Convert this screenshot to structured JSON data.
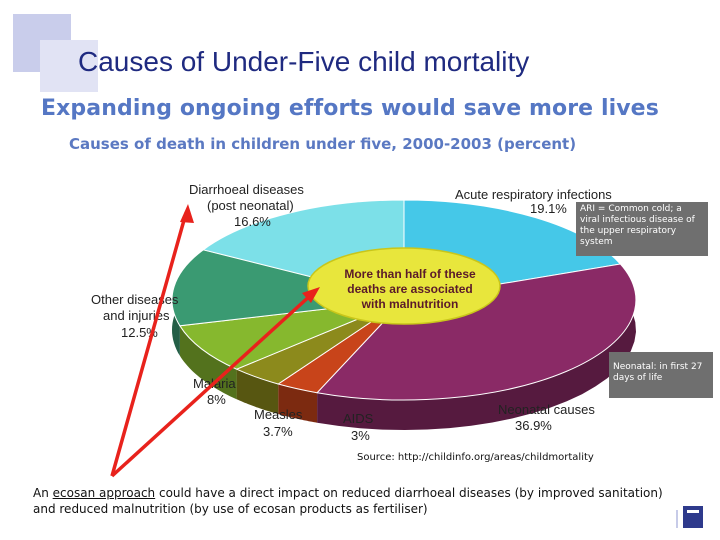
{
  "slide_title": "Causes of Under-Five child mortality",
  "headline": "Expanding ongoing efforts would save more lives",
  "chart_data": {
    "type": "pie",
    "title": "Causes of death in children under five, 2000-2003 (percent)",
    "slices": [
      {
        "label": "Acute respiratory infections",
        "value": 19.1,
        "value_label": "19.1%",
        "color": "#45c8e8"
      },
      {
        "label": "Neonatal causes",
        "value": 36.9,
        "value_label": "36.9%",
        "color": "#8a2a66"
      },
      {
        "label": "AIDS",
        "value": 3,
        "value_label": "3%",
        "color": "#c8441a"
      },
      {
        "label": "Measles",
        "value": 3.7,
        "value_label": "3.7%",
        "color": "#8c8a1c"
      },
      {
        "label": "Malaria",
        "value": 8,
        "value_label": "8%",
        "color": "#86b82e"
      },
      {
        "label": "Other diseases and injuries",
        "value": 12.5,
        "value_label": "12.5%",
        "color": "#3a9a72"
      },
      {
        "label": "Diarrhoeal diseases (post neonatal)",
        "value": 16.6,
        "value_label": "16.6%",
        "color": "#7ce0e8"
      }
    ],
    "center_label": "More than half of these deaths are associated with malnutrition",
    "center_color": "#e8e63c"
  },
  "labels": {
    "diarrhoea_l1": "Diarrhoeal diseases",
    "diarrhoea_l2": "(post neonatal)",
    "diarrhoea_pct": "16.6%",
    "ari_l1": "Acute respiratory infections",
    "ari_pct": "19.1%",
    "other_l1": "Other diseases",
    "other_l2": "and injuries",
    "other_pct": "12.5%",
    "malaria_l1": "Malaria",
    "malaria_pct": "8%",
    "measles_l1": "Measles",
    "measles_pct": "3.7%",
    "aids_l1": "AIDS",
    "aids_pct": "3%",
    "neonatal_l1": "Neonatal causes",
    "neonatal_pct": "36.9%",
    "center_l1": "More than half of these",
    "center_l2": "deaths are associated",
    "center_l3": "with malnutrition"
  },
  "notes": {
    "ari": "ARI = Common cold; a viral infectious disease of the upper respiratory system",
    "neonatal": "Neonatal: in first 27 days of life"
  },
  "source": "Source: http://childinfo.org/areas/childmortality",
  "caption": {
    "prefix": "An ",
    "link": "ecosan approach",
    "rest": " could have a direct impact on reduced diarrhoeal diseases (by improved sanitation) and reduced malnutrition (by use of ecosan products as fertiliser)"
  },
  "arrow_color": "#e8221c"
}
